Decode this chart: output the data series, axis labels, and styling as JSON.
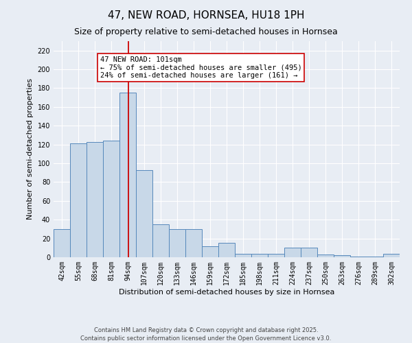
{
  "title": "47, NEW ROAD, HORNSEA, HU18 1PH",
  "subtitle": "Size of property relative to semi-detached houses in Hornsea",
  "xlabel": "Distribution of semi-detached houses by size in Hornsea",
  "ylabel": "Number of semi-detached properties",
  "bar_color": "#c8d8e8",
  "bar_edge_color": "#5588bb",
  "background_color": "#e8edf4",
  "grid_color": "#ffffff",
  "vline_x": 101,
  "vline_color": "#cc0000",
  "annotation_text": "47 NEW ROAD: 101sqm\n← 75% of semi-detached houses are smaller (495)\n24% of semi-detached houses are larger (161) →",
  "annotation_box_color": "#ffffff",
  "annotation_box_edge_color": "#cc0000",
  "categories": [
    "42sqm",
    "55sqm",
    "68sqm",
    "81sqm",
    "94sqm",
    "107sqm",
    "120sqm",
    "133sqm",
    "146sqm",
    "159sqm",
    "172sqm",
    "185sqm",
    "198sqm",
    "211sqm",
    "224sqm",
    "237sqm",
    "250sqm",
    "263sqm",
    "276sqm",
    "289sqm",
    "302sqm"
  ],
  "bin_edges": [
    42,
    55,
    68,
    81,
    94,
    107,
    120,
    133,
    146,
    159,
    172,
    185,
    198,
    211,
    224,
    237,
    250,
    263,
    276,
    289,
    302
  ],
  "values": [
    30,
    121,
    123,
    124,
    175,
    93,
    35,
    30,
    30,
    12,
    15,
    4,
    4,
    4,
    10,
    10,
    3,
    2,
    1,
    1,
    4
  ],
  "ylim": [
    0,
    230
  ],
  "yticks": [
    0,
    20,
    40,
    60,
    80,
    100,
    120,
    140,
    160,
    180,
    200,
    220
  ],
  "footnote": "Contains HM Land Registry data © Crown copyright and database right 2025.\nContains public sector information licensed under the Open Government Licence v3.0.",
  "title_fontsize": 11,
  "subtitle_fontsize": 9,
  "label_fontsize": 8,
  "tick_fontsize": 7,
  "footnote_fontsize": 6,
  "annotation_fontsize": 7.5
}
